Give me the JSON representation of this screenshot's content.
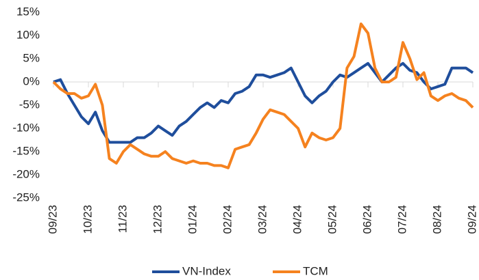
{
  "chart_data": {
    "type": "line",
    "x": [
      0,
      0.2,
      0.4,
      0.6,
      0.8,
      1,
      1.2,
      1.4,
      1.6,
      1.8,
      2,
      2.2,
      2.4,
      2.6,
      2.8,
      3,
      3.2,
      3.4,
      3.6,
      3.8,
      4,
      4.2,
      4.4,
      4.6,
      4.8,
      5,
      5.2,
      5.4,
      5.6,
      5.8,
      6,
      6.2,
      6.4,
      6.6,
      6.8,
      7,
      7.2,
      7.4,
      7.6,
      7.8,
      8,
      8.2,
      8.4,
      8.6,
      8.8,
      9,
      9.2,
      9.4,
      9.6,
      9.8,
      10,
      10.2,
      10.4,
      10.6,
      10.8,
      11,
      11.2,
      11.4,
      11.6,
      11.8,
      12
    ],
    "series": [
      {
        "name": "VN-Index",
        "color": "#1f4e9c",
        "values": [
          0,
          0.5,
          -2.5,
          -5,
          -7.5,
          -9,
          -6.5,
          -10.5,
          -13,
          -13,
          -13,
          -13,
          -12,
          -12,
          -11,
          -9.5,
          -10.5,
          -11.5,
          -9.5,
          -8.5,
          -7,
          -5.5,
          -4.5,
          -5.5,
          -4,
          -4.5,
          -2.5,
          -2,
          -1,
          1.5,
          1.5,
          1,
          1.5,
          2,
          3,
          0,
          -3,
          -4.5,
          -3,
          -2,
          0,
          1.5,
          1,
          2,
          3,
          4,
          2,
          0,
          1.5,
          3,
          4,
          2.5,
          2,
          0,
          -1.5,
          -1,
          -0.5,
          3,
          3,
          3,
          2
        ]
      },
      {
        "name": "TCM",
        "color": "#f5821f",
        "values": [
          0,
          -1.5,
          -2.5,
          -2.5,
          -3.5,
          -3,
          -0.5,
          -5,
          -16.5,
          -17.5,
          -15,
          -13.5,
          -14.5,
          -15.5,
          -16,
          -16,
          -15,
          -16.5,
          -17,
          -17.5,
          -17,
          -17.5,
          -17.5,
          -18,
          -18,
          -18.5,
          -14.5,
          -14,
          -13.5,
          -11,
          -8,
          -6,
          -6.5,
          -7,
          -8.5,
          -10,
          -14,
          -11,
          -12,
          -12.5,
          -12,
          -10,
          3,
          5.5,
          12.5,
          10.5,
          3,
          0,
          0,
          1,
          8.5,
          5,
          0.5,
          2,
          -3,
          -4,
          -3,
          -2.5,
          -3.5,
          -4,
          -5.5
        ]
      }
    ],
    "xlim": [
      0,
      12
    ],
    "xticks": [
      {
        "value": 0,
        "label": "09/23"
      },
      {
        "value": 1,
        "label": "10/23"
      },
      {
        "value": 2,
        "label": "11/23"
      },
      {
        "value": 3,
        "label": "12/23"
      },
      {
        "value": 4,
        "label": "01/24"
      },
      {
        "value": 5,
        "label": "02/24"
      },
      {
        "value": 6,
        "label": "03/24"
      },
      {
        "value": 7,
        "label": "04/24"
      },
      {
        "value": 8,
        "label": "05/24"
      },
      {
        "value": 9,
        "label": "06/24"
      },
      {
        "value": 10,
        "label": "07/24"
      },
      {
        "value": 11,
        "label": "08/24"
      },
      {
        "value": 12,
        "label": "09/24"
      }
    ],
    "ylim": [
      -25,
      15
    ],
    "yticks": [
      {
        "value": -25,
        "label": "-25%"
      },
      {
        "value": -20,
        "label": "-20%"
      },
      {
        "value": -15,
        "label": "-15%"
      },
      {
        "value": -10,
        "label": "-10%"
      },
      {
        "value": -5,
        "label": "-5%"
      },
      {
        "value": 0,
        "label": "0%"
      },
      {
        "value": 5,
        "label": "5%"
      },
      {
        "value": 10,
        "label": "10%"
      },
      {
        "value": 15,
        "label": "15%"
      }
    ],
    "legend": "bottom"
  }
}
